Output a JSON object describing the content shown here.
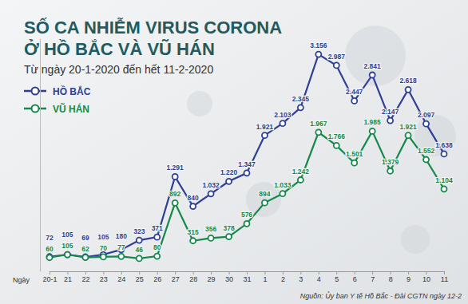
{
  "chart_data": {
    "type": "line",
    "title": "SỐ CA NHIỄM VIRUS CORONA\nỞ HỒ BẮC VÀ VŨ HÁN",
    "subtitle": "Từ ngày 20-1-2020 đến hết 11-2-2020",
    "x_label": "Ngày",
    "source": "Nguồn: Ủy ban Y tế Hồ Bắc - Đài CGTN ngày 12-2",
    "categories": [
      "20-1",
      "21",
      "22",
      "23",
      "24",
      "25",
      "26",
      "27",
      "28",
      "29",
      "30",
      "31",
      "1",
      "2",
      "3",
      "4",
      "5",
      "6",
      "7",
      "8",
      "9",
      "10",
      "11"
    ],
    "series": [
      {
        "name": "HỒ BẮC",
        "color": "#2e3f95",
        "marker": "circle",
        "values": [
          72,
          105,
          69,
          105,
          180,
          323,
          371,
          1291,
          840,
          1032,
          1220,
          1347,
          1921,
          2103,
          2345,
          3156,
          2987,
          2447,
          2841,
          2147,
          2618,
          2097,
          1638
        ],
        "value_labels": [
          "72",
          "105",
          "69",
          "105",
          "180",
          "323",
          "371",
          "1.291",
          "840",
          "1.032",
          "1.220",
          "1.347",
          "1.921",
          "2.103",
          "2.345",
          "3.156",
          "2.987",
          "2.447",
          "2.841",
          "2.147",
          "2.618",
          "2.097",
          "1.638"
        ]
      },
      {
        "name": "VŨ HÁN",
        "color": "#14894a",
        "marker": "circle",
        "values": [
          60,
          105,
          62,
          70,
          77,
          46,
          80,
          892,
          315,
          356,
          378,
          576,
          894,
          1033,
          1242,
          1967,
          1766,
          1501,
          1985,
          1379,
          1921,
          1552,
          1104
        ],
        "value_labels": [
          "60",
          "105",
          "62",
          "70",
          "77",
          "46",
          "80",
          "892",
          "315",
          "356",
          "378",
          "576",
          "894",
          "1.033",
          "1.242",
          "1.967",
          "1.766",
          "1.501",
          "1.985",
          "1.379",
          "1.921",
          "1.552",
          "1.104"
        ]
      }
    ],
    "ylim": [
      -150,
      3400
    ],
    "yticks": [],
    "tick_labels": "x",
    "data_labels": true,
    "grid": false,
    "legend": "top-left"
  }
}
